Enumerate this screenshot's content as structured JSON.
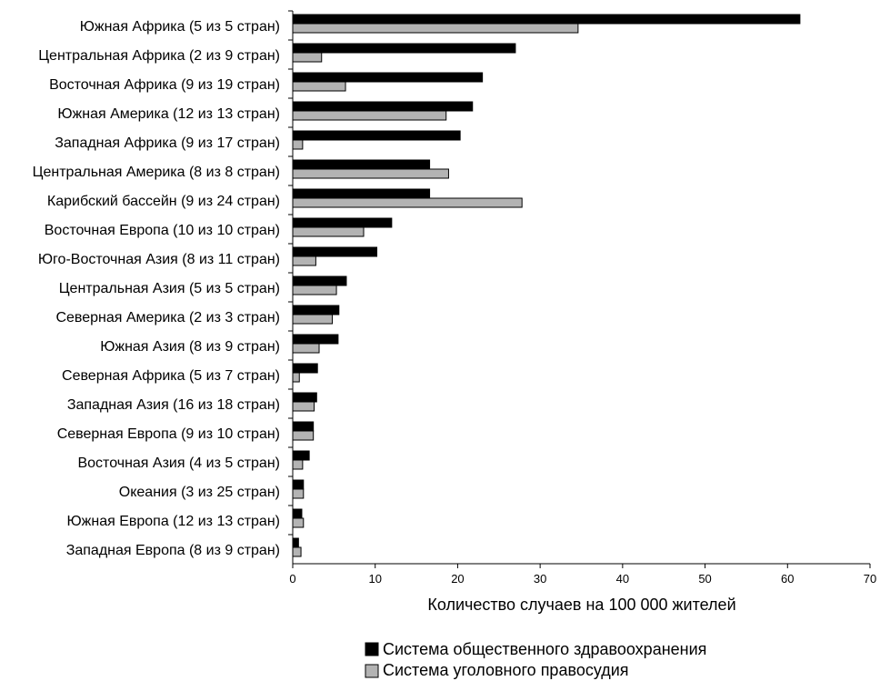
{
  "chart_data": {
    "type": "bar",
    "orientation": "horizontal",
    "categories": [
      "Южная Африка (5 из 5 стран)",
      "Центральная Африка (2 из 9 стран)",
      "Восточная Африка (9 из 19 стран)",
      "Южная Америка (12 из 13 стран)",
      "Западная Африка (9 из 17 стран)",
      "Центральная Америка (8 из 8 стран)",
      "Карибский бассейн (9 из 24 стран)",
      "Восточная Европа (10 из 10 стран)",
      "Юго-Восточная Азия (8 из  11 стран)",
      "Центральная Азия (5 из  5 стран)",
      "Северная Америка (2 из 3 стран)",
      "Южная Азия (8 из 9 стран)",
      "Северная Африка (5 из 7 стран)",
      "Западная Азия (16 из 18 стран)",
      "Северная Европа (9 из 10 стран)",
      "Восточная Азия (4 из 5 стран)",
      "Океания (3 из 25 стран)",
      "Южная Европа (12 из 13 стран)",
      "Западная Европа (8 из 9 стран)"
    ],
    "series": [
      {
        "name": "Система общественного здравоохранения",
        "color": "#000000",
        "values": [
          61.5,
          27.0,
          23.0,
          21.8,
          20.3,
          16.6,
          16.6,
          12.0,
          10.2,
          6.5,
          5.6,
          5.5,
          3.0,
          2.9,
          2.5,
          2.0,
          1.3,
          1.1,
          0.7
        ]
      },
      {
        "name": "Система уголовного правосудия",
        "color": "#b3b3b3",
        "values": [
          34.6,
          3.5,
          6.4,
          18.6,
          1.2,
          18.9,
          27.8,
          8.6,
          2.8,
          5.3,
          4.8,
          3.2,
          0.8,
          2.6,
          2.5,
          1.2,
          1.3,
          1.3,
          1.0
        ]
      }
    ],
    "xlabel": "Количество случаев на 100 000 жителей",
    "xlim": [
      0,
      70
    ],
    "xticks": [
      "0",
      "10",
      "20",
      "30",
      "40",
      "50",
      "60",
      "70"
    ],
    "grid": false,
    "legend_position": "bottom"
  }
}
